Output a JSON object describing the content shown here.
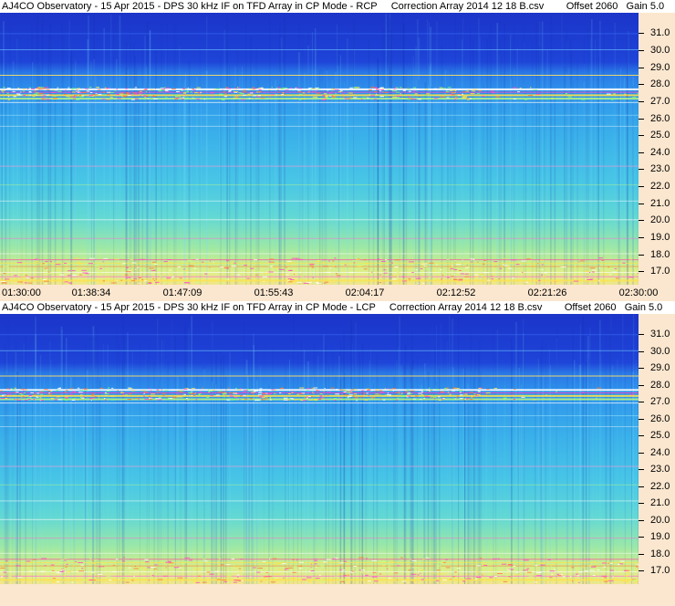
{
  "chart_data": [
    {
      "type": "heatmap",
      "title": "AJ4CO Observatory - 15 Apr 2015 - DPS 30 kHz IF on TFD Array in CP Mode - RCP     Correction Array 2014 12 18 B.csv        Offset 2060   Gain 5.0",
      "y_ticks": [
        "31.0",
        "30.0",
        "29.0",
        "28.0",
        "27.0",
        "26.0",
        "25.0",
        "24.0",
        "23.0",
        "22.0",
        "21.0",
        "20.0",
        "19.0",
        "18.0",
        "17.0"
      ],
      "x_ticks": [
        "01:30:00",
        "01:38:34",
        "01:47:09",
        "01:55:43",
        "02:04:17",
        "02:12:52",
        "02:21:26",
        "02:30:00"
      ],
      "ylim": [
        16.2,
        32.2
      ],
      "xlim": [
        "01:30:00",
        "02:30:00"
      ]
    },
    {
      "type": "heatmap",
      "title": "AJ4CO Observatory - 15 Apr 2015 - DPS 30 kHz IF on TFD Array in CP Mode - LCP     Correction Array 2014 12 18 B.csv        Offset 2060   Gain 5.0",
      "y_ticks": [
        "31.0",
        "30.0",
        "29.0",
        "28.0",
        "27.0",
        "26.0",
        "25.0",
        "24.0",
        "23.0",
        "22.0",
        "21.0",
        "20.0",
        "19.0",
        "18.0",
        "17.0"
      ],
      "x_ticks": [],
      "ylim": [
        16.2,
        32.2
      ],
      "xlim": [
        "01:30:00",
        "02:30:00"
      ]
    }
  ]
}
